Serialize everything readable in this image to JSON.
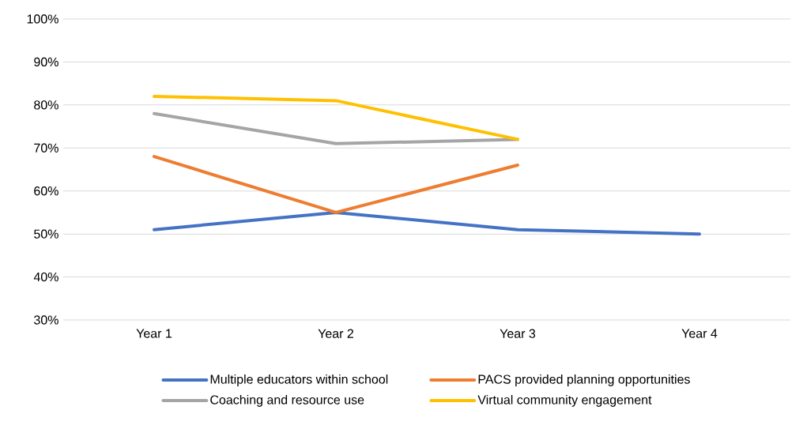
{
  "chart_data": {
    "type": "line",
    "categories": [
      "Year 1",
      "Year 2",
      "Year 3",
      "Year 4"
    ],
    "series": [
      {
        "name": "Multiple educators within school",
        "color": "#4472c4",
        "values": [
          51,
          55,
          51,
          50
        ]
      },
      {
        "name": "PACS provided planning opportunities",
        "color": "#ed7d31",
        "values": [
          68,
          55,
          66,
          null
        ]
      },
      {
        "name": "Coaching and resource use",
        "color": "#a5a5a5",
        "values": [
          78,
          71,
          72,
          null
        ]
      },
      {
        "name": "Virtual community engagement",
        "color": "#ffc000",
        "values": [
          82,
          81,
          72,
          null
        ]
      }
    ],
    "ylim": [
      30,
      100
    ],
    "yticks": [
      {
        "value": 30,
        "label": "30%"
      },
      {
        "value": 40,
        "label": "40%"
      },
      {
        "value": 50,
        "label": "50%"
      },
      {
        "value": 60,
        "label": "60%"
      },
      {
        "value": 70,
        "label": "70%"
      },
      {
        "value": 80,
        "label": "80%"
      },
      {
        "value": 90,
        "label": "90%"
      },
      {
        "value": 100,
        "label": "100%"
      }
    ],
    "grid": "y",
    "legend": "bottom",
    "marker": "none",
    "line_style": "solid"
  }
}
